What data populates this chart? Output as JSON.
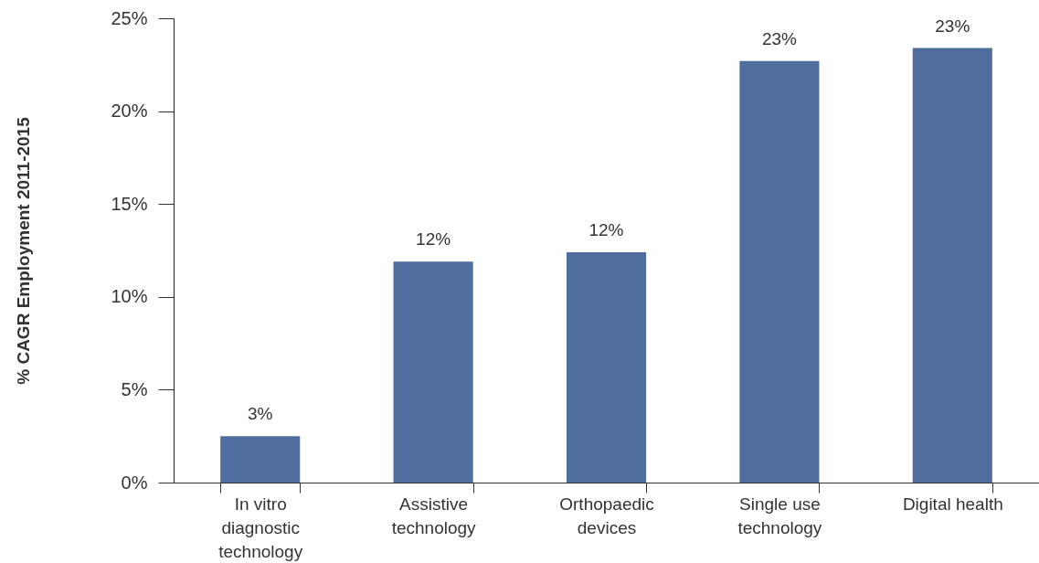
{
  "chart_data": {
    "type": "bar",
    "ylabel": "% CAGR Employment 2011-2015",
    "categories": [
      "In vitro diagnostic technology",
      "Assistive technology",
      "Orthopaedic devices",
      "Single use technology",
      "Digital health"
    ],
    "values": [
      2.5,
      11.9,
      12.4,
      22.7,
      23.4
    ],
    "color": "#4f6d9f",
    "value_labels": [
      "3%",
      "12%",
      "12%",
      "23%",
      "23%"
    ],
    "ylim": [
      0,
      25
    ],
    "yticks": [
      {
        "value": 0,
        "label": "0%"
      },
      {
        "value": 5,
        "label": "5%"
      },
      {
        "value": 10,
        "label": "10%"
      },
      {
        "value": 15,
        "label": "15%"
      },
      {
        "value": 20,
        "label": "20%"
      },
      {
        "value": 25,
        "label": "25%"
      }
    ]
  }
}
